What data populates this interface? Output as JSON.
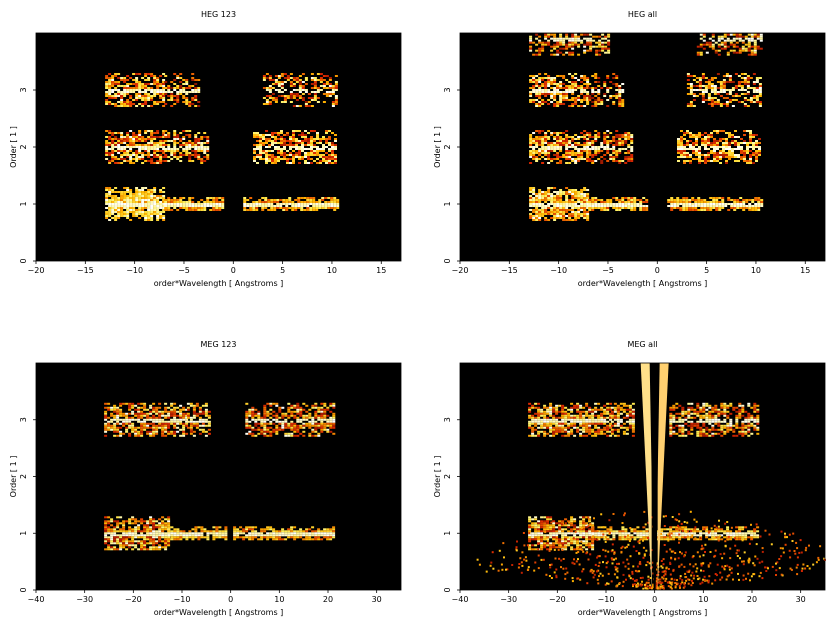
{
  "chart_data": [
    {
      "type": "heatmap",
      "title": "HEG 123",
      "xlabel": "order*Wavelength [ Angstroms ]",
      "ylabel": "Order [ 1 ]",
      "xlim": [
        -20,
        17
      ],
      "ylim": [
        0,
        4
      ],
      "xticks": [
        -20,
        -15,
        -10,
        -5,
        0,
        5,
        10,
        15
      ],
      "yticks": [
        0,
        1,
        2,
        3
      ],
      "background": "#000000",
      "bands": [
        {
          "order": 1,
          "x": [
            -13,
            -7
          ],
          "kind": "scatter",
          "density": 0.95,
          "hot": 0.55
        },
        {
          "order": 1,
          "x": [
            -7,
            -1.2
          ],
          "kind": "dense",
          "density": 0.97,
          "hot": 0.4
        },
        {
          "order": 1,
          "x": [
            1,
            10.5
          ],
          "kind": "dense",
          "density": 0.95,
          "hot": 0.4
        },
        {
          "order": 2,
          "x": [
            -13,
            -7
          ],
          "kind": "scatter",
          "density": 0.8,
          "hot": 0.2
        },
        {
          "order": 2,
          "x": [
            -7,
            -2.5
          ],
          "kind": "scatter",
          "density": 0.7,
          "hot": 0.15
        },
        {
          "order": 2,
          "x": [
            2,
            10.5
          ],
          "kind": "scatter",
          "density": 0.75,
          "hot": 0.2
        },
        {
          "order": 3,
          "x": [
            -13,
            -7
          ],
          "kind": "scatter",
          "density": 0.75,
          "hot": 0.25
        },
        {
          "order": 3,
          "x": [
            -7,
            -3.5
          ],
          "kind": "scatter",
          "density": 0.6,
          "hot": 0.1
        },
        {
          "order": 3,
          "x": [
            3,
            10.5
          ],
          "kind": "scatter",
          "density": 0.6,
          "hot": 0.15
        }
      ]
    },
    {
      "type": "heatmap",
      "title": "HEG all",
      "xlabel": "order*Wavelength [ Angstroms ]",
      "ylabel": "Order [ 1 ]",
      "xlim": [
        -20,
        17
      ],
      "ylim": [
        0,
        4
      ],
      "xticks": [
        -20,
        -15,
        -10,
        -5,
        0,
        5,
        10,
        15
      ],
      "yticks": [
        0,
        1,
        2,
        3
      ],
      "background": "#000000",
      "bands": [
        {
          "order": 1,
          "x": [
            -13,
            -7
          ],
          "kind": "scatter",
          "density": 0.9,
          "hot": 0.4
        },
        {
          "order": 1,
          "x": [
            -7,
            -1.2
          ],
          "kind": "dense",
          "density": 0.97,
          "hot": 0.4
        },
        {
          "order": 1,
          "x": [
            1,
            10.5
          ],
          "kind": "dense",
          "density": 0.95,
          "hot": 0.4
        },
        {
          "order": 2,
          "x": [
            -13,
            -7
          ],
          "kind": "scatter",
          "density": 0.8,
          "hot": 0.2
        },
        {
          "order": 2,
          "x": [
            -7,
            -2.5
          ],
          "kind": "scatter",
          "density": 0.7,
          "hot": 0.15
        },
        {
          "order": 2,
          "x": [
            2,
            10.5
          ],
          "kind": "scatter",
          "density": 0.75,
          "hot": 0.2
        },
        {
          "order": 3,
          "x": [
            -13,
            -7
          ],
          "kind": "scatter",
          "density": 0.75,
          "hot": 0.25
        },
        {
          "order": 3,
          "x": [
            -7,
            -3.5
          ],
          "kind": "scatter",
          "density": 0.6,
          "hot": 0.1
        },
        {
          "order": 3,
          "x": [
            3,
            10.5
          ],
          "kind": "scatter",
          "density": 0.6,
          "hot": 0.15
        },
        {
          "order": 3.9,
          "x": [
            -13,
            -5
          ],
          "kind": "scatter",
          "density": 0.6,
          "hot": 0.15
        },
        {
          "order": 3.9,
          "x": [
            4,
            10.5
          ],
          "kind": "scatter",
          "density": 0.6,
          "hot": 0.15
        }
      ]
    },
    {
      "type": "heatmap",
      "title": "MEG 123",
      "xlabel": "order*Wavelength [ Angstroms ]",
      "ylabel": "Order [ 1 ]",
      "xlim": [
        -40,
        35
      ],
      "ylim": [
        0,
        4
      ],
      "xticks": [
        -40,
        -30,
        -20,
        -10,
        0,
        10,
        20,
        30
      ],
      "yticks": [
        0,
        1,
        2,
        3
      ],
      "background": "#000000",
      "bands": [
        {
          "order": 1,
          "x": [
            -26,
            -13
          ],
          "kind": "scatter",
          "density": 0.9,
          "hot": 0.2
        },
        {
          "order": 1,
          "x": [
            -13,
            -1.2
          ],
          "kind": "dense",
          "density": 0.95,
          "hot": 0.45
        },
        {
          "order": 1,
          "x": [
            0.5,
            21
          ],
          "kind": "dense",
          "density": 0.9,
          "hot": 0.4
        },
        {
          "order": 3,
          "x": [
            -26,
            -9
          ],
          "kind": "scatter",
          "density": 0.8,
          "hot": 0.25
        },
        {
          "order": 3,
          "x": [
            -9,
            -4.5
          ],
          "kind": "scatter",
          "density": 0.7,
          "hot": 0.2
        },
        {
          "order": 3,
          "x": [
            3,
            21
          ],
          "kind": "scatter",
          "density": 0.7,
          "hot": 0.2
        }
      ]
    },
    {
      "type": "heatmap",
      "title": "MEG all",
      "xlabel": "order*Wavelength [ Angstroms ]",
      "ylabel": "Order [ 1 ]",
      "xlim": [
        -40,
        35
      ],
      "ylim": [
        0,
        4
      ],
      "xticks": [
        -40,
        -30,
        -20,
        -10,
        0,
        10,
        20,
        30
      ],
      "yticks": [
        0,
        1,
        2,
        3
      ],
      "background": "#000000",
      "bands": [
        {
          "order": 1,
          "x": [
            -26,
            -13
          ],
          "kind": "scatter",
          "density": 0.9,
          "hot": 0.2
        },
        {
          "order": 1,
          "x": [
            -13,
            -1.2
          ],
          "kind": "dense",
          "density": 0.95,
          "hot": 0.45
        },
        {
          "order": 1,
          "x": [
            0.5,
            21
          ],
          "kind": "dense",
          "density": 0.9,
          "hot": 0.4
        },
        {
          "order": 3,
          "x": [
            -26,
            -9
          ],
          "kind": "scatter",
          "density": 0.8,
          "hot": 0.25
        },
        {
          "order": 3,
          "x": [
            -9,
            -4.5
          ],
          "kind": "scatter",
          "density": 0.7,
          "hot": 0.2
        },
        {
          "order": 3,
          "x": [
            3,
            21
          ],
          "kind": "scatter",
          "density": 0.7,
          "hot": 0.2
        }
      ],
      "overlay": "fan"
    }
  ]
}
